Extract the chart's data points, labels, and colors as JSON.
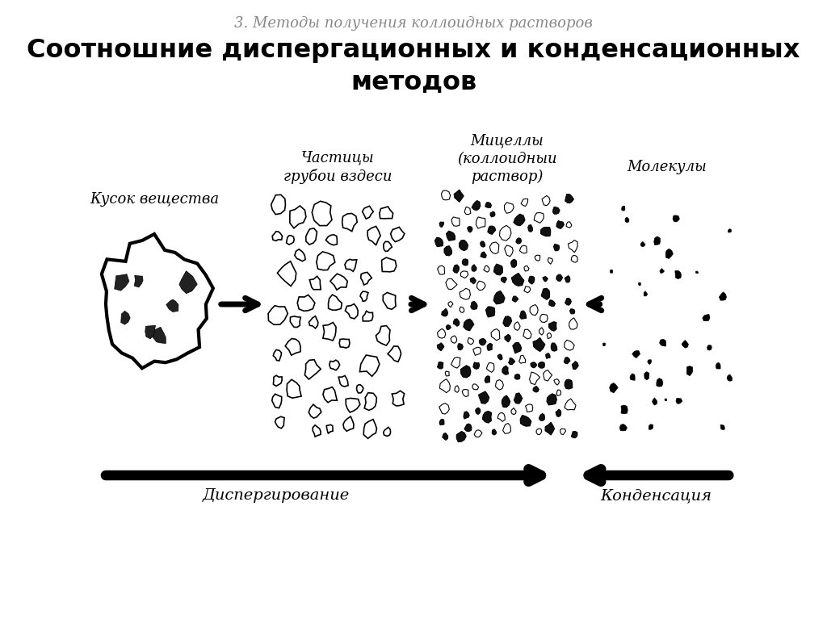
{
  "subtitle": "3. Методы получения коллоидных растворов",
  "title": "Соотношние диспергационных и конденсационных\nметодов",
  "label_chunk": "Кусок вещества",
  "label_coarse": "Частицы\nгрубои вздеси",
  "label_micelles": "Мицеллы\n(коллоидныи\nраствор)",
  "label_molecules": "Молекулы",
  "label_dispersion": "Диспергирование",
  "label_condensation": "Конденсация",
  "bg_color": "#ffffff",
  "text_color": "#000000",
  "subtitle_color": "#888888"
}
